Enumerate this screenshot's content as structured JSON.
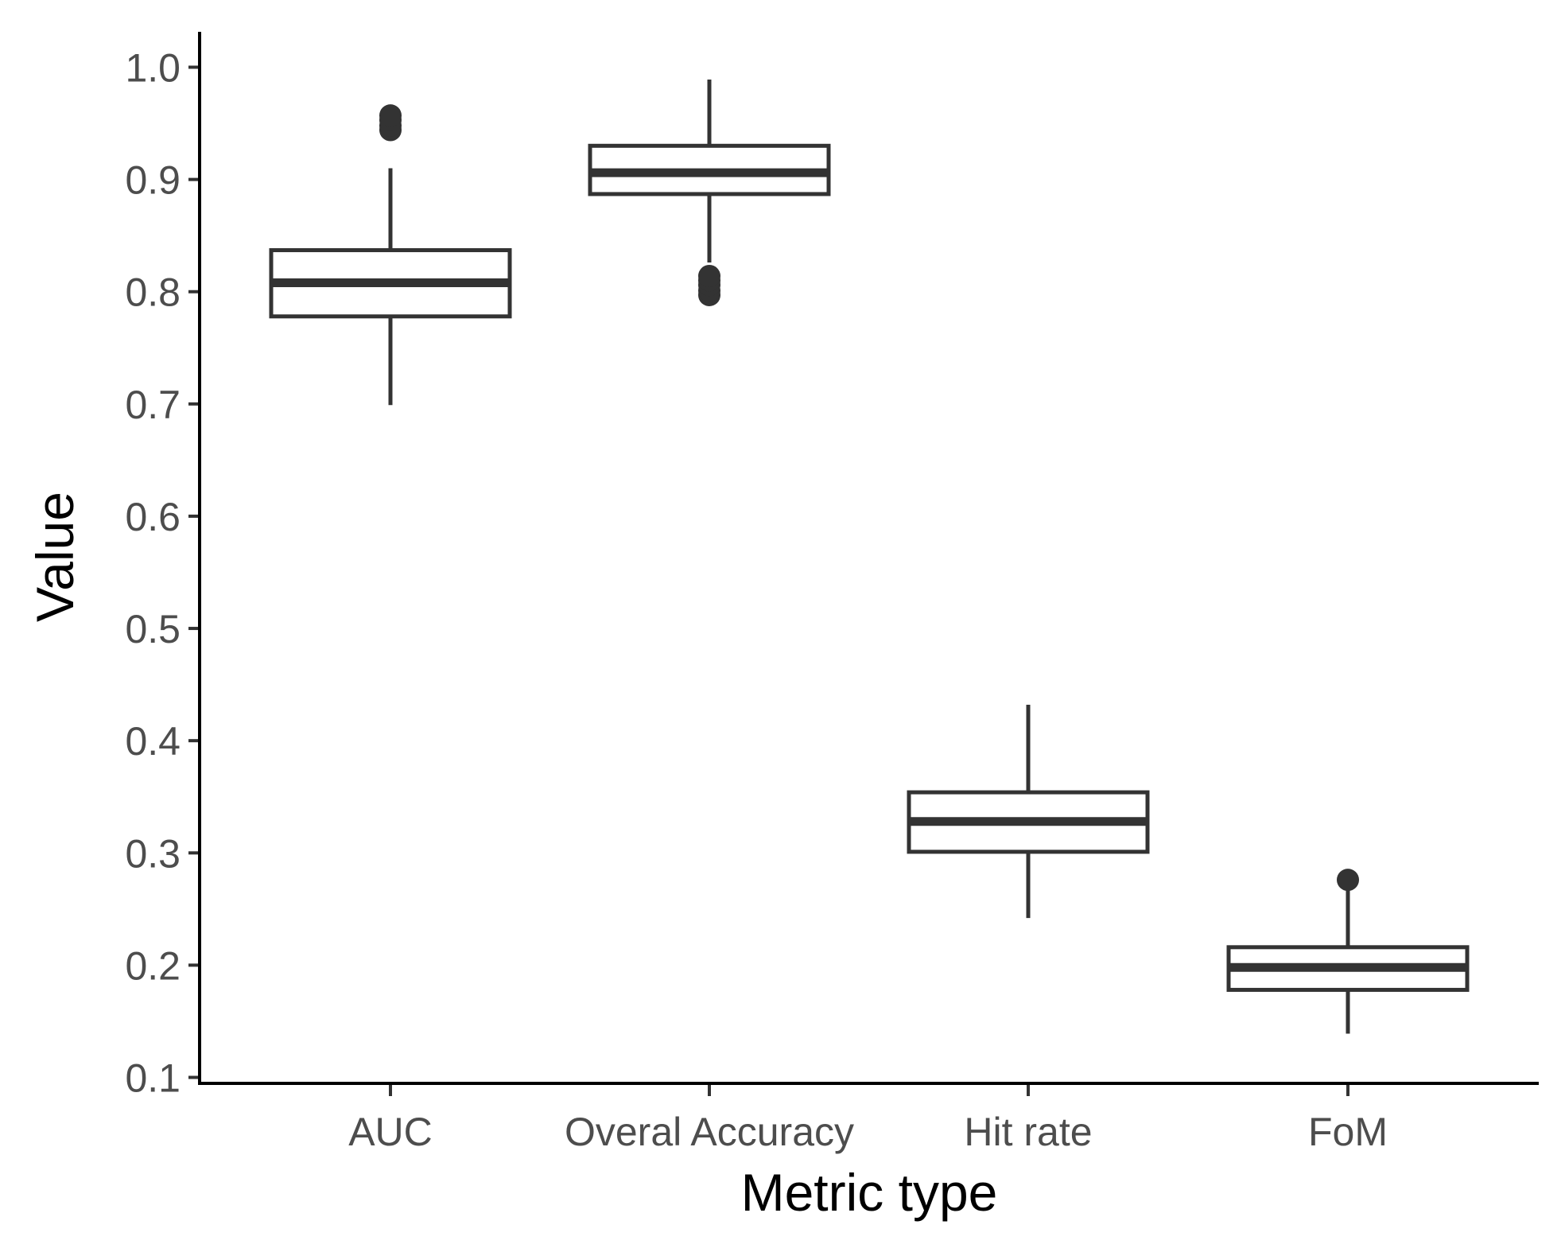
{
  "chart_data": {
    "type": "boxplot",
    "title": "",
    "xlabel": "Metric type",
    "ylabel": "Value",
    "ylim": [
      0.1,
      1.0
    ],
    "yticks": [
      0.1,
      0.2,
      0.3,
      0.4,
      0.5,
      0.6,
      0.7,
      0.8,
      0.9,
      1.0
    ],
    "ytick_labels": [
      "0.1",
      "0.2",
      "0.3",
      "0.4",
      "0.5",
      "0.6",
      "0.7",
      "0.8",
      "0.9",
      "1.0"
    ],
    "grid": false,
    "categories": [
      "AUC",
      "Overal Accuracy",
      "Hit rate",
      "FoM"
    ],
    "boxes": [
      {
        "category": "AUC",
        "whisker_low": 0.699,
        "q1": 0.778,
        "median": 0.808,
        "q3": 0.837,
        "whisker_high": 0.91,
        "outliers": [
          0.944,
          0.948,
          0.953,
          0.957
        ]
      },
      {
        "category": "Overal Accuracy",
        "whisker_low": 0.826,
        "q1": 0.887,
        "median": 0.906,
        "q3": 0.93,
        "whisker_high": 0.989,
        "outliers": [
          0.797,
          0.801,
          0.806,
          0.81,
          0.814
        ]
      },
      {
        "category": "Hit rate",
        "whisker_low": 0.242,
        "q1": 0.301,
        "median": 0.328,
        "q3": 0.354,
        "whisker_high": 0.432,
        "outliers": []
      },
      {
        "category": "FoM",
        "whisker_low": 0.139,
        "q1": 0.178,
        "median": 0.198,
        "q3": 0.216,
        "whisker_high": 0.27,
        "outliers": [
          0.276
        ]
      }
    ],
    "colors": {
      "box_stroke": "#333333",
      "box_fill": "#ffffff",
      "axis": "#000000",
      "tick_text": "#4d4d4d",
      "title_text": "#000000"
    }
  }
}
